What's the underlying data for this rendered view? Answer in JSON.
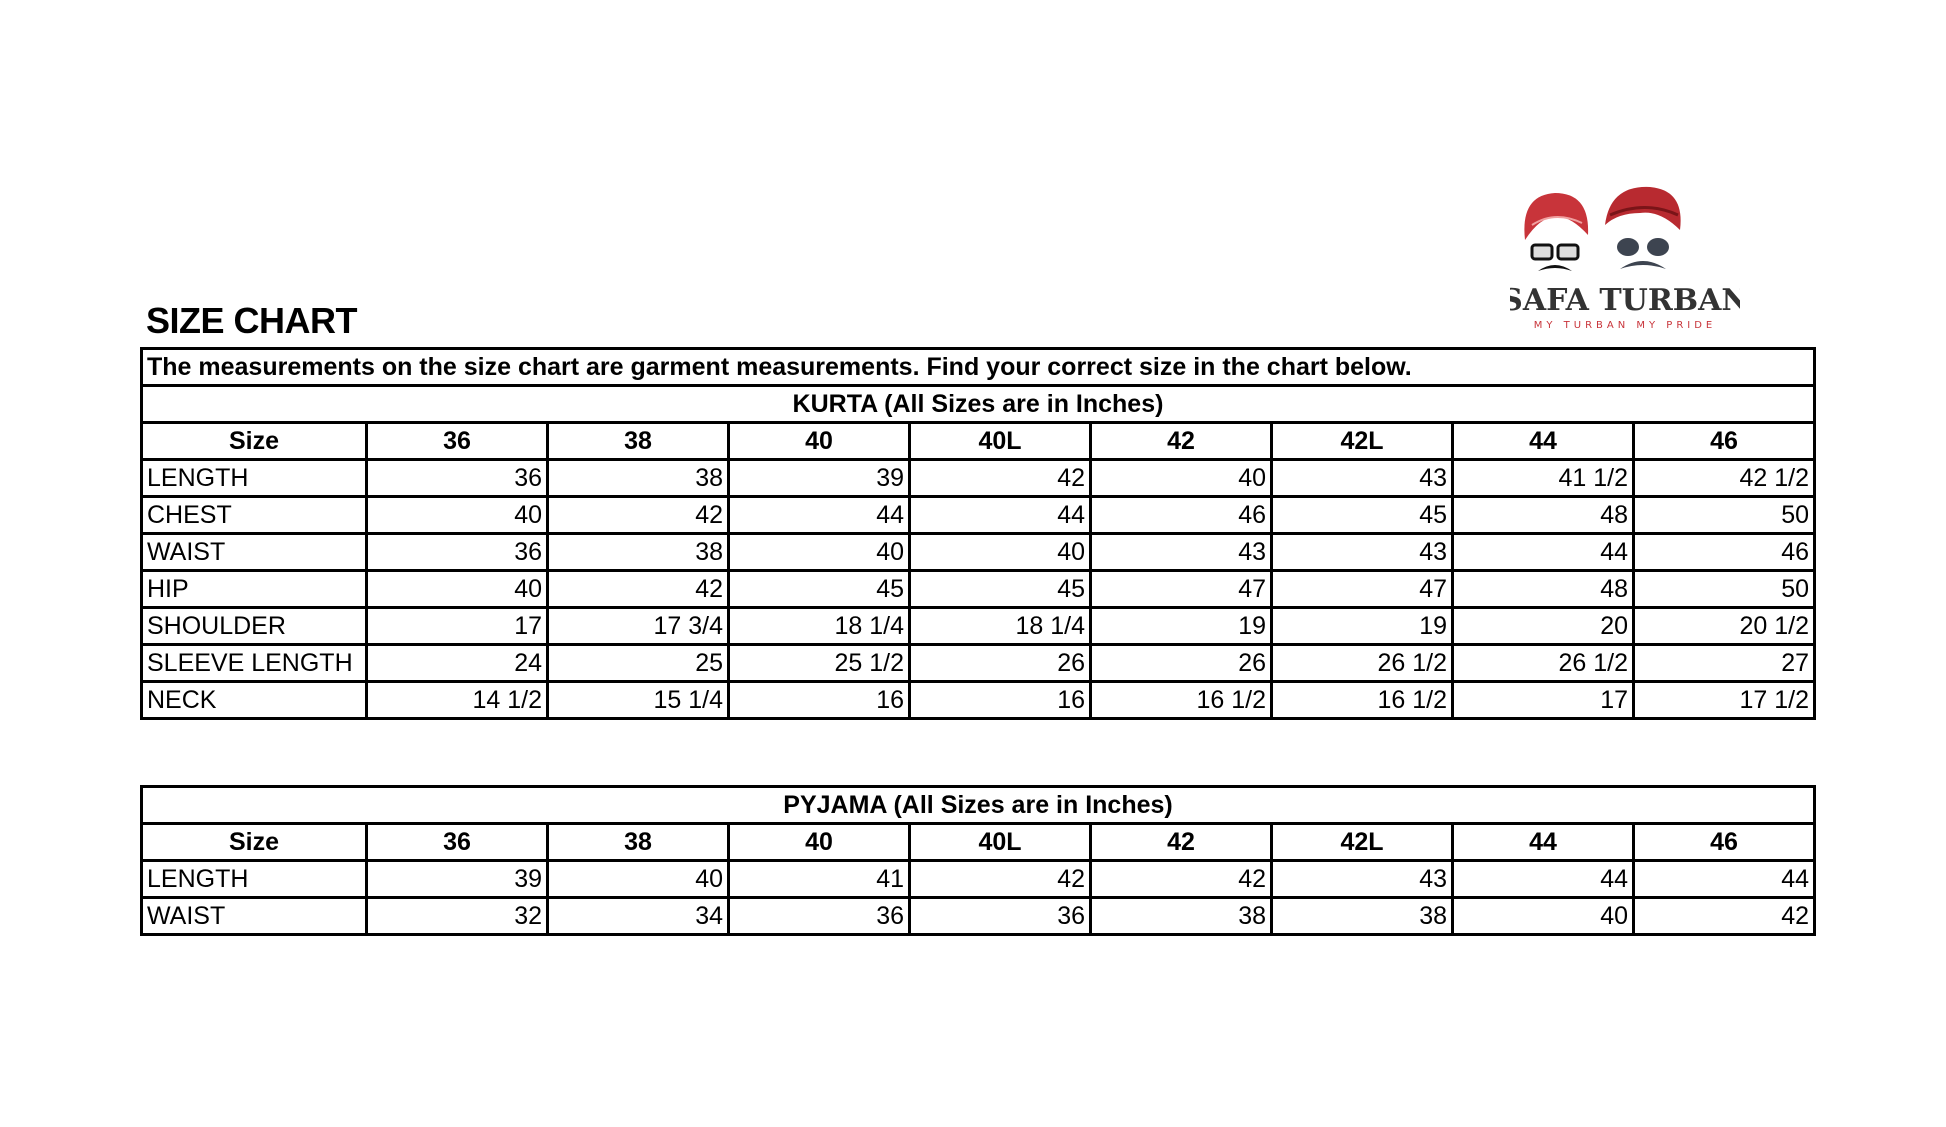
{
  "title": "SIZE CHART",
  "logo": {
    "brand": "SAFA TURBAN",
    "tagline": "MY TURBAN MY PRIDE",
    "colors": {
      "turban": "#c8343a",
      "text": "#333333"
    }
  },
  "note": "The measurements on the size chart are garment measurements. Find your correct size in the chart below.",
  "kurta": {
    "heading": "KURTA  (All Sizes are in Inches)",
    "columns": [
      "Size",
      "36",
      "38",
      "40",
      "40L",
      "42",
      "42L",
      "44",
      "46"
    ],
    "rows": [
      [
        "LENGTH",
        "36",
        "38",
        "39",
        "42",
        "40",
        "43",
        "41 1/2",
        "42 1/2"
      ],
      [
        "CHEST",
        "40",
        "42",
        "44",
        "44",
        "46",
        "45",
        "48",
        "50"
      ],
      [
        "WAIST",
        "36",
        "38",
        "40",
        "40",
        "43",
        "43",
        "44",
        "46"
      ],
      [
        "HIP",
        "40",
        "42",
        "45",
        "45",
        "47",
        "47",
        "48",
        "50"
      ],
      [
        "SHOULDER",
        "17",
        "17 3/4",
        "18 1/4",
        "18 1/4",
        "19",
        "19",
        "20",
        "20 1/2"
      ],
      [
        "SLEEVE LENGTH",
        "24",
        "25",
        "25 1/2",
        "26",
        "26",
        "26 1/2",
        "26 1/2",
        "27"
      ],
      [
        "NECK",
        "14 1/2",
        "15 1/4",
        "16",
        "16",
        "16 1/2",
        "16 1/2",
        "17",
        "17 1/2"
      ]
    ]
  },
  "pyjama": {
    "heading": "PYJAMA  (All Sizes are in Inches)",
    "columns": [
      "Size",
      "36",
      "38",
      "40",
      "40L",
      "42",
      "42L",
      "44",
      "46"
    ],
    "rows": [
      [
        "LENGTH",
        "39",
        "40",
        "41",
        "42",
        "42",
        "43",
        "44",
        "44"
      ],
      [
        "WAIST",
        "32",
        "34",
        "36",
        "36",
        "38",
        "38",
        "40",
        "42"
      ]
    ]
  }
}
